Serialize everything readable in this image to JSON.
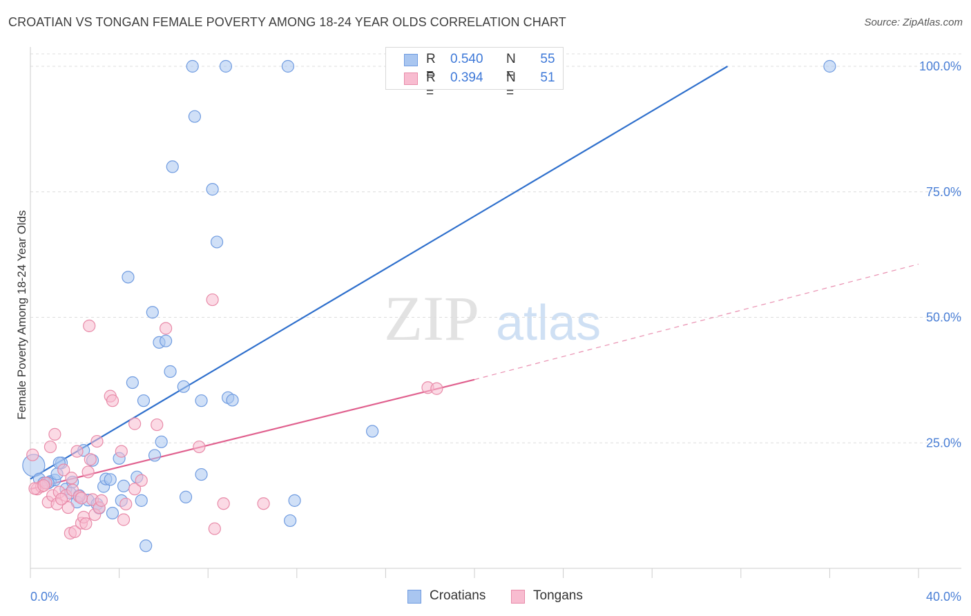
{
  "title": "CROATIAN VS TONGAN FEMALE POVERTY AMONG 18-24 YEAR OLDS CORRELATION CHART",
  "source": "Source: ZipAtlas.com",
  "watermark": {
    "zip": "ZIP",
    "atlas": "atlas"
  },
  "legend_top": {
    "rows": [
      {
        "r_label": "R =",
        "r_value": "0.540",
        "n_label": "N =",
        "n_value": "55",
        "color": "#a9c6f0",
        "border": "#6f9be0"
      },
      {
        "r_label": "R =",
        "r_value": "0.394",
        "n_label": "N =",
        "n_value": "51",
        "color": "#f8bcd0",
        "border": "#e88aa8"
      }
    ]
  },
  "legend_bottom": {
    "items": [
      {
        "label": "Croatians",
        "color": "#a9c6f0",
        "border": "#6f9be0"
      },
      {
        "label": "Tongans",
        "color": "#f8bcd0",
        "border": "#e88aa8"
      }
    ]
  },
  "chart_data": {
    "type": "scatter",
    "title": "CROATIAN VS TONGAN FEMALE POVERTY AMONG 18-24 YEAR OLDS CORRELATION CHART",
    "xlabel": "",
    "ylabel": "Female Poverty Among 18-24 Year Olds",
    "xlim": [
      0,
      40
    ],
    "ylim": [
      0,
      100
    ],
    "x_tick_labels": [
      "0.0%",
      "40.0%"
    ],
    "y_ticks": [
      25,
      50,
      75,
      100
    ],
    "y_tick_labels": [
      "25.0%",
      "50.0%",
      "75.0%",
      "100.0%"
    ],
    "grid": true,
    "legend_position": "top-center",
    "series": [
      {
        "name": "Croatians",
        "color": "#6f9be0",
        "fill": "#a9c6f0",
        "trend_color": "#2e6fcc",
        "trend": {
          "x": [
            0,
            31.4
          ],
          "y": [
            17.8,
            100
          ]
        },
        "points": [
          [
            0.15,
            20.5
          ],
          [
            0.4,
            17.8
          ],
          [
            0.6,
            17.0
          ],
          [
            0.9,
            17.3
          ],
          [
            1.1,
            17.6
          ],
          [
            1.2,
            18.8
          ],
          [
            1.4,
            21.0
          ],
          [
            1.6,
            15.8
          ],
          [
            1.8,
            15.0
          ],
          [
            1.9,
            17.2
          ],
          [
            2.1,
            13.2
          ],
          [
            2.4,
            23.5
          ],
          [
            2.6,
            13.6
          ],
          [
            2.8,
            21.5
          ],
          [
            3.0,
            12.8
          ],
          [
            3.1,
            12.0
          ],
          [
            3.3,
            16.3
          ],
          [
            3.4,
            17.8
          ],
          [
            3.6,
            17.7
          ],
          [
            3.7,
            11.0
          ],
          [
            4.0,
            21.9
          ],
          [
            4.2,
            16.4
          ],
          [
            4.1,
            13.5
          ],
          [
            4.4,
            58.0
          ],
          [
            4.6,
            37.0
          ],
          [
            4.8,
            18.2
          ],
          [
            5.0,
            13.5
          ],
          [
            5.1,
            33.4
          ],
          [
            5.2,
            4.5
          ],
          [
            5.5,
            51.0
          ],
          [
            5.6,
            22.5
          ],
          [
            5.8,
            45.0
          ],
          [
            5.9,
            25.2
          ],
          [
            6.1,
            45.3
          ],
          [
            6.3,
            39.2
          ],
          [
            6.4,
            80.0
          ],
          [
            6.9,
            36.2
          ],
          [
            7.0,
            14.2
          ],
          [
            7.3,
            100.0
          ],
          [
            7.4,
            90.0
          ],
          [
            7.7,
            18.7
          ],
          [
            7.7,
            33.4
          ],
          [
            8.2,
            75.5
          ],
          [
            8.4,
            65.0
          ],
          [
            8.8,
            100.0
          ],
          [
            8.9,
            34.0
          ],
          [
            9.1,
            33.5
          ],
          [
            11.6,
            100.0
          ],
          [
            11.7,
            9.5
          ],
          [
            11.9,
            13.5
          ],
          [
            15.4,
            27.3
          ],
          [
            36.0,
            100.0
          ],
          [
            1.3,
            21.0
          ],
          [
            0.8,
            17.0
          ],
          [
            2.2,
            14.5
          ]
        ]
      },
      {
        "name": "Tongans",
        "color": "#e88aa8",
        "fill": "#f8bcd0",
        "trend_color": "#e0608e",
        "trend": {
          "x": [
            0,
            20.0
          ],
          "y": [
            15.8,
            37.6
          ]
        },
        "trend_dashed": {
          "x": [
            20.0,
            40.0
          ],
          "y": [
            37.6,
            60.6
          ]
        },
        "points": [
          [
            0.1,
            22.6
          ],
          [
            0.3,
            15.8
          ],
          [
            0.5,
            16.3
          ],
          [
            0.7,
            17.0
          ],
          [
            0.8,
            13.2
          ],
          [
            0.9,
            24.2
          ],
          [
            1.0,
            14.5
          ],
          [
            1.1,
            26.7
          ],
          [
            1.2,
            12.8
          ],
          [
            1.3,
            15.2
          ],
          [
            1.5,
            19.6
          ],
          [
            1.6,
            14.5
          ],
          [
            1.7,
            12.1
          ],
          [
            1.8,
            7.0
          ],
          [
            1.9,
            15.6
          ],
          [
            2.0,
            7.3
          ],
          [
            2.1,
            23.3
          ],
          [
            2.2,
            14.3
          ],
          [
            2.3,
            9.0
          ],
          [
            2.4,
            10.2
          ],
          [
            2.5,
            8.9
          ],
          [
            2.6,
            19.2
          ],
          [
            2.7,
            21.7
          ],
          [
            2.8,
            13.7
          ],
          [
            2.9,
            10.7
          ],
          [
            3.0,
            25.3
          ],
          [
            3.1,
            12.1
          ],
          [
            3.2,
            13.5
          ],
          [
            2.65,
            48.3
          ],
          [
            3.6,
            34.3
          ],
          [
            3.7,
            33.4
          ],
          [
            4.1,
            23.3
          ],
          [
            4.2,
            9.7
          ],
          [
            4.3,
            12.8
          ],
          [
            4.7,
            28.8
          ],
          [
            4.7,
            15.8
          ],
          [
            5.0,
            17.5
          ],
          [
            5.7,
            28.6
          ],
          [
            6.1,
            47.8
          ],
          [
            7.6,
            24.2
          ],
          [
            8.2,
            53.5
          ],
          [
            8.3,
            7.9
          ],
          [
            8.7,
            12.9
          ],
          [
            10.5,
            12.9
          ],
          [
            17.9,
            36.0
          ],
          [
            18.3,
            35.8
          ],
          [
            0.2,
            15.9
          ],
          [
            0.6,
            16.5
          ],
          [
            1.4,
            13.8
          ],
          [
            2.3,
            14.0
          ],
          [
            1.85,
            18.0
          ]
        ]
      }
    ]
  }
}
